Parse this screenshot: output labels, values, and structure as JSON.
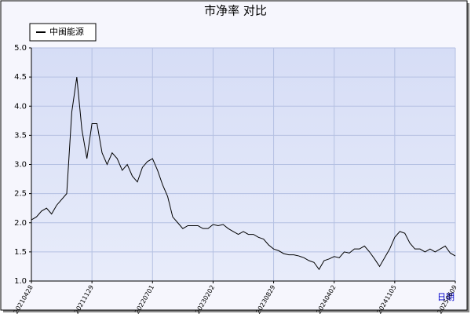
{
  "chart_data": {
    "type": "line",
    "title": "市净率  对比",
    "x_label": "日期",
    "categories": [
      "20210428",
      null,
      null,
      null,
      null,
      null,
      null,
      null,
      null,
      null,
      null,
      null,
      "20211129",
      null,
      null,
      null,
      null,
      null,
      null,
      null,
      null,
      null,
      null,
      null,
      "20220701",
      null,
      null,
      null,
      null,
      null,
      null,
      null,
      null,
      null,
      null,
      null,
      "20230202",
      null,
      null,
      null,
      null,
      null,
      null,
      null,
      null,
      null,
      null,
      null,
      "20230829",
      null,
      null,
      null,
      null,
      null,
      null,
      null,
      null,
      null,
      null,
      null,
      "20240402",
      null,
      null,
      null,
      null,
      null,
      null,
      null,
      null,
      null,
      null,
      null,
      "20241105",
      null,
      null,
      null,
      null,
      null,
      null,
      null,
      null,
      null,
      null,
      null,
      "20250609"
    ],
    "series": [
      {
        "name": "中闽能源",
        "color": "#000000",
        "values": [
          2.05,
          2.1,
          2.2,
          2.25,
          2.15,
          2.3,
          2.4,
          2.5,
          3.9,
          4.5,
          3.6,
          3.1,
          3.7,
          3.7,
          3.2,
          3.0,
          3.2,
          3.1,
          2.9,
          3.0,
          2.8,
          2.7,
          2.95,
          3.05,
          3.1,
          2.9,
          2.65,
          2.45,
          2.1,
          2.0,
          1.9,
          1.95,
          1.95,
          1.95,
          1.9,
          1.9,
          1.97,
          1.95,
          1.97,
          1.9,
          1.85,
          1.8,
          1.85,
          1.8,
          1.8,
          1.75,
          1.72,
          1.62,
          1.55,
          1.52,
          1.47,
          1.45,
          1.45,
          1.43,
          1.4,
          1.35,
          1.32,
          1.2,
          1.35,
          1.38,
          1.42,
          1.4,
          1.5,
          1.48,
          1.55,
          1.55,
          1.6,
          1.5,
          1.38,
          1.25,
          1.4,
          1.55,
          1.75,
          1.85,
          1.82,
          1.65,
          1.55,
          1.55,
          1.5,
          1.55,
          1.5,
          1.55,
          1.6,
          1.48,
          1.43
        ]
      }
    ],
    "ylim": [
      1,
      5
    ],
    "yticks": [
      {
        "value": 1,
        "label": "1.0"
      },
      {
        "value": 1.5,
        "label": "1.5"
      },
      {
        "value": 2,
        "label": "2.0"
      },
      {
        "value": 2.5,
        "label": "2.5"
      },
      {
        "value": 3,
        "label": "3.0"
      },
      {
        "value": 3.5,
        "label": "3.5"
      },
      {
        "value": 4,
        "label": "4.0"
      },
      {
        "value": 4.5,
        "label": "4.5"
      },
      {
        "value": 5,
        "label": "5.0"
      }
    ],
    "grid": true
  }
}
